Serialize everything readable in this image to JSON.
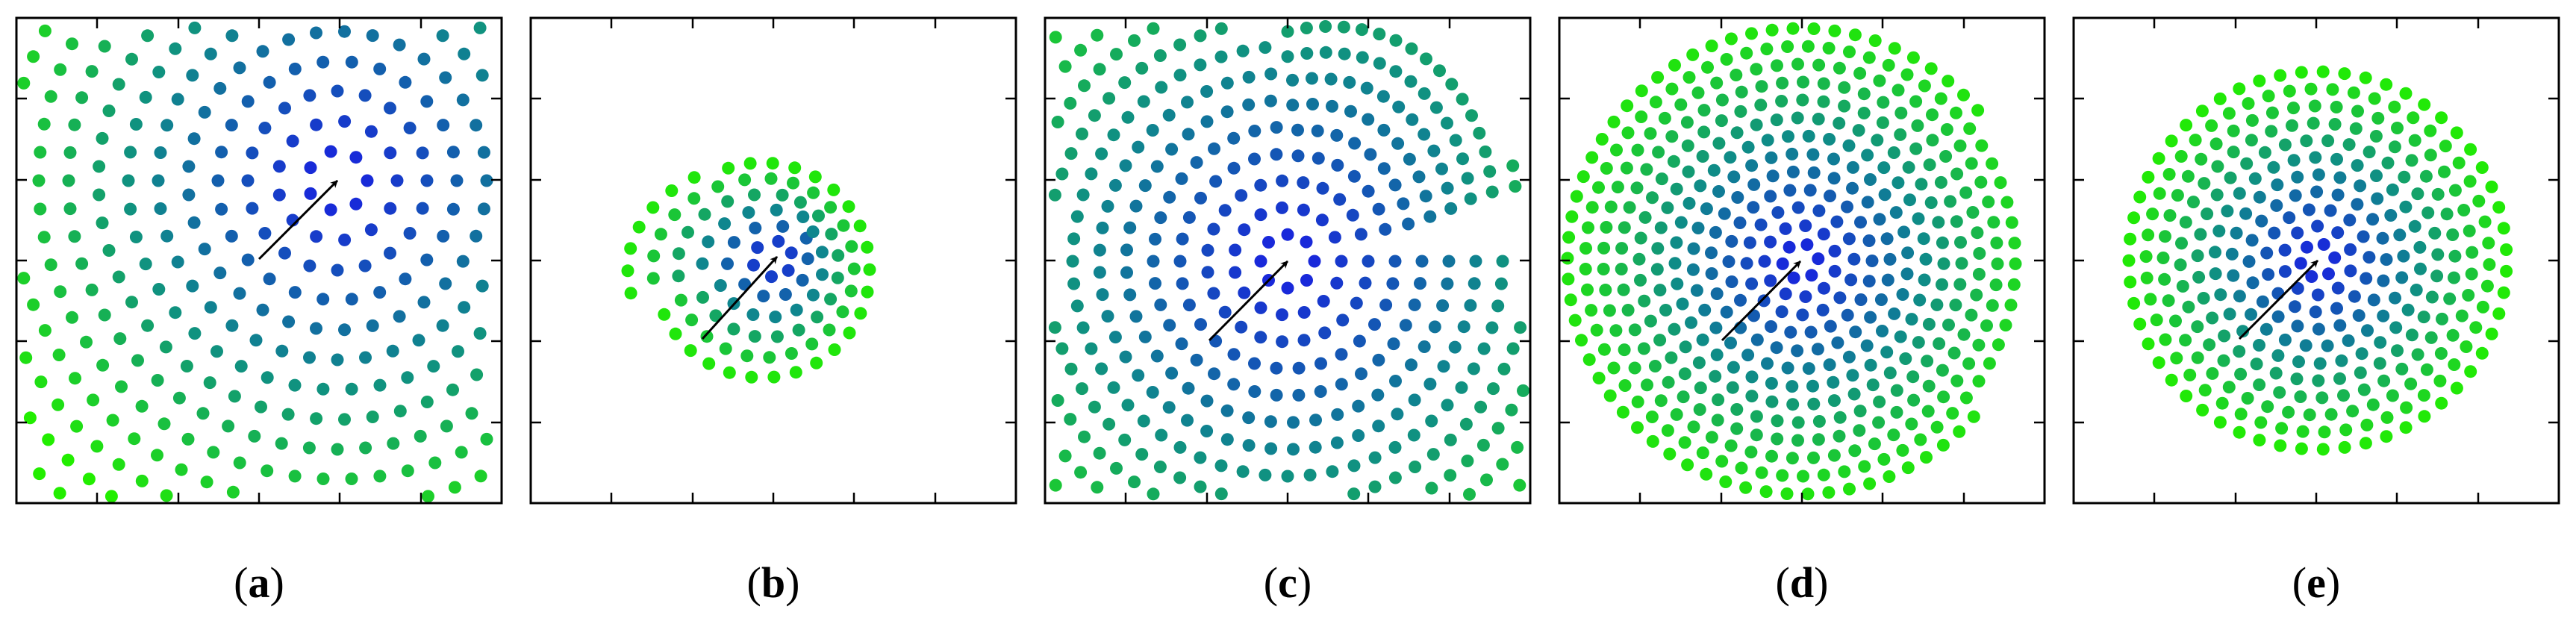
{
  "figure": {
    "dot_color_center": "#1a1ae6",
    "dot_color_mid": "#0f8a8a",
    "dot_color_outer": "#22ee00",
    "arrow_color": "#000000",
    "frame_color": "#000000"
  },
  "panels": [
    {
      "id": "a",
      "label_open": "(",
      "label_letter": "a",
      "label_close": ")",
      "pattern": "spiral-full"
    },
    {
      "id": "b",
      "label_open": "(",
      "label_letter": "b",
      "label_close": ")",
      "pattern": "spiral-small"
    },
    {
      "id": "c",
      "label_open": "(",
      "label_letter": "c",
      "label_close": ")",
      "pattern": "spiral-sheared-quarter"
    },
    {
      "id": "d",
      "label_open": "(",
      "label_letter": "d",
      "label_close": ")",
      "pattern": "spiral-rotated"
    },
    {
      "id": "e",
      "label_open": "(",
      "label_letter": "e",
      "label_close": ")",
      "pattern": "spiral-rotated-compact"
    }
  ]
}
